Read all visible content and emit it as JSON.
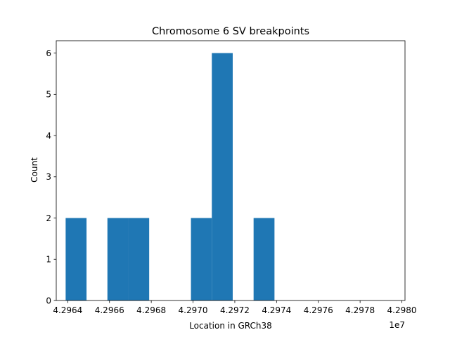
{
  "chart_data": {
    "type": "bar",
    "title": "Chromosome 6 SV breakpoints",
    "xlabel": "Location in GRCh38",
    "ylabel": "Count",
    "x_offset_label": "1e7",
    "bar_color": "#1f77b4",
    "xlim": [
      42963450,
      42980150
    ],
    "ylim": [
      0,
      6.3
    ],
    "bins": [
      {
        "x0": 42963900,
        "x1": 42964900,
        "count": 2
      },
      {
        "x0": 42964900,
        "x1": 42965900,
        "count": 0
      },
      {
        "x0": 42965900,
        "x1": 42966900,
        "count": 2
      },
      {
        "x0": 42966900,
        "x1": 42967900,
        "count": 2
      },
      {
        "x0": 42967900,
        "x1": 42968900,
        "count": 0
      },
      {
        "x0": 42968900,
        "x1": 42969900,
        "count": 0
      },
      {
        "x0": 42969900,
        "x1": 42970900,
        "count": 2
      },
      {
        "x0": 42970900,
        "x1": 42971900,
        "count": 6
      },
      {
        "x0": 42971900,
        "x1": 42972900,
        "count": 0
      },
      {
        "x0": 42972900,
        "x1": 42973900,
        "count": 2
      }
    ],
    "x_ticks": [
      {
        "value": 42964000,
        "label": "4.2964"
      },
      {
        "value": 42966000,
        "label": "4.2966"
      },
      {
        "value": 42968000,
        "label": "4.2968"
      },
      {
        "value": 42970000,
        "label": "4.2970"
      },
      {
        "value": 42972000,
        "label": "4.2972"
      },
      {
        "value": 42974000,
        "label": "4.2974"
      },
      {
        "value": 42976000,
        "label": "4.2976"
      },
      {
        "value": 42978000,
        "label": "4.2978"
      },
      {
        "value": 42980000,
        "label": "4.2980"
      }
    ],
    "y_ticks": [
      {
        "value": 0,
        "label": "0"
      },
      {
        "value": 1,
        "label": "1"
      },
      {
        "value": 2,
        "label": "2"
      },
      {
        "value": 3,
        "label": "3"
      },
      {
        "value": 4,
        "label": "4"
      },
      {
        "value": 5,
        "label": "5"
      },
      {
        "value": 6,
        "label": "6"
      }
    ],
    "grid": false
  }
}
